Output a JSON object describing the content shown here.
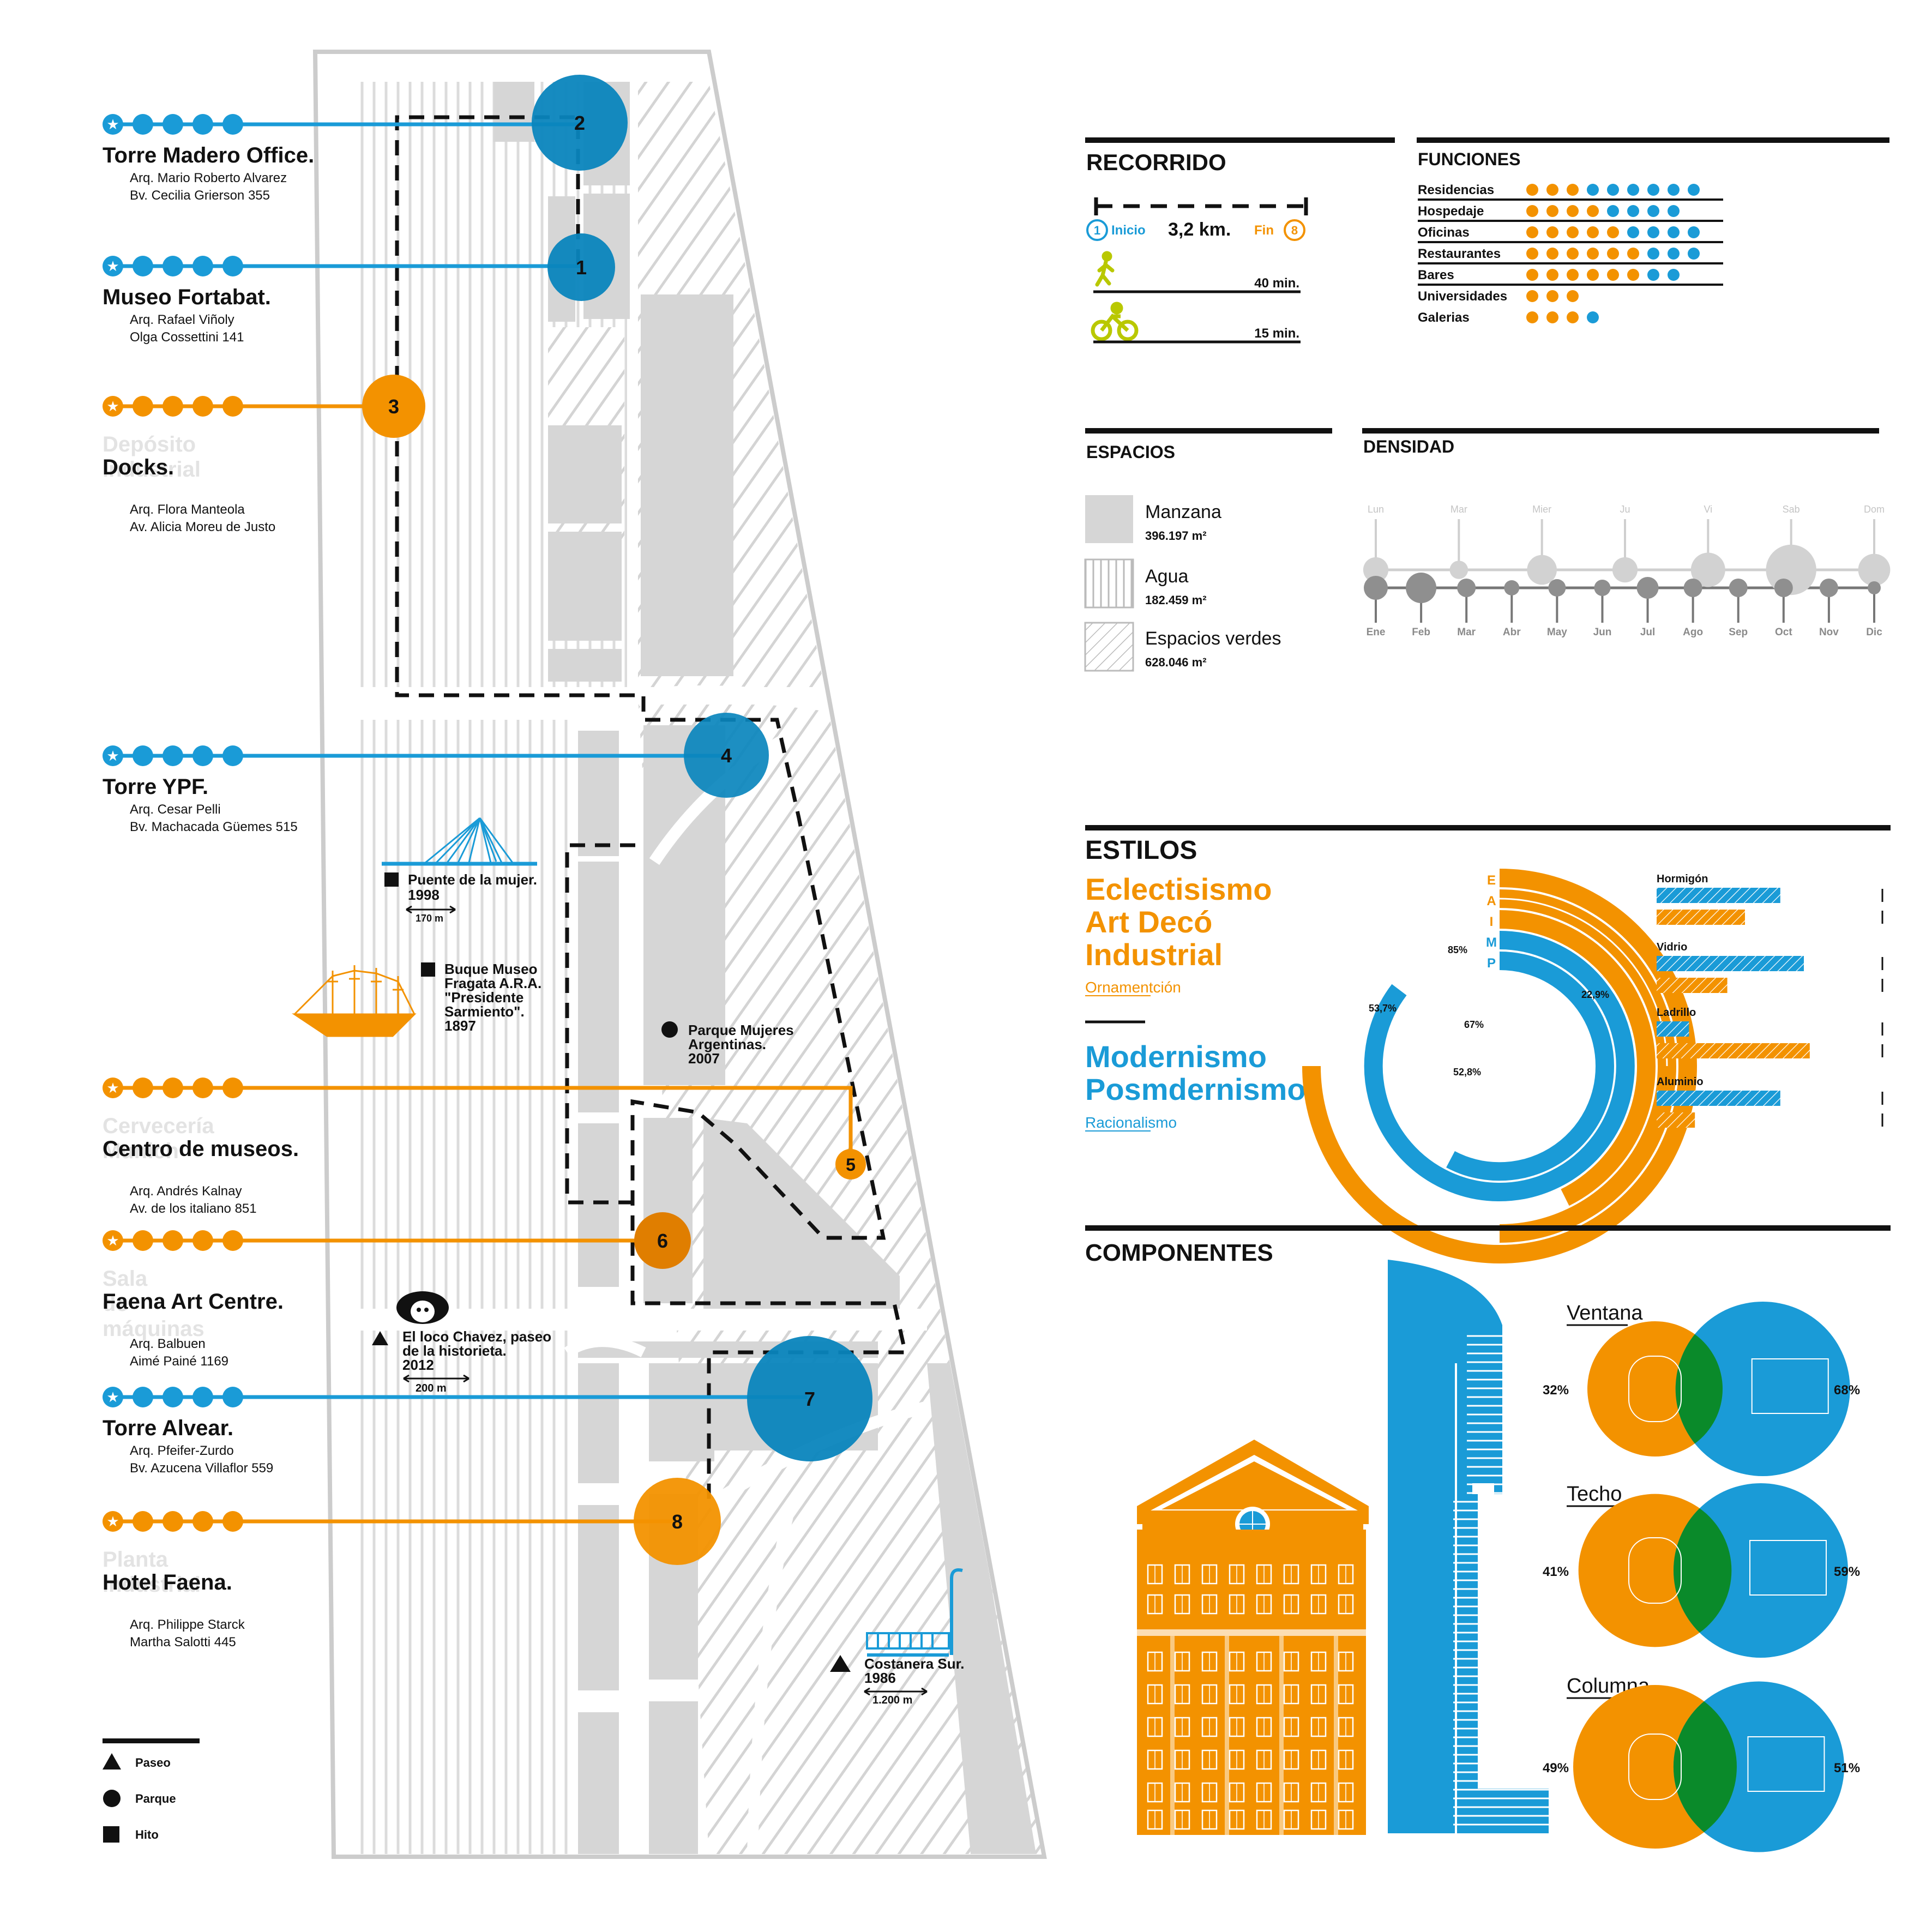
{
  "colors": {
    "blue": "#1a9bd7",
    "orange": "#f39200",
    "gray": "#d9d9d9",
    "dark_gray": "#6f6f6f",
    "green": "#0a8a2a",
    "lime": "#b9c800",
    "black": "#111111"
  },
  "landmarks": [
    {
      "number": "2",
      "name": "Torre Madero Office.",
      "ghost": "",
      "architect": "Arq. Mario Roberto Alvarez",
      "address": "Bv. Cecilia Grierson 355",
      "color": "blue"
    },
    {
      "number": "1",
      "name": "Museo Fortabat.",
      "ghost": "",
      "architect": "Arq. Rafael  Viñoly",
      "address": "Olga Cossettini 141",
      "color": "blue"
    },
    {
      "number": "3",
      "name": "Docks.",
      "ghost": "Depósito industrial",
      "architect": "Arq. Flora Manteola",
      "address": "Av. Alicia Moreu de Justo",
      "color": "orange"
    },
    {
      "number": "4",
      "name": "Torre YPF.",
      "ghost": "",
      "architect": "Arq. Cesar Pelli",
      "address": "Bv. Machacada Güemes 515",
      "color": "blue"
    },
    {
      "number": "5",
      "name": "Centro de museos.",
      "ghost": "Cervecería Munich",
      "architect": "Arq. Andrés Kalnay",
      "address": "Av. de los italiano 851",
      "color": "orange"
    },
    {
      "number": "6",
      "name": "Faena Art Centre.",
      "ghost": "Sala de máquinas",
      "architect": "Arq. Balbuen",
      "address": "Aimé Painé 1169",
      "color": "orange"
    },
    {
      "number": "7",
      "name": "Torre Alvear.",
      "ghost": "",
      "architect": "Arq. Pfeifer-Zurdo",
      "address": "Bv. Azucena Villaflor 559",
      "color": "blue"
    },
    {
      "number": "8",
      "name": "Hotel Faena.",
      "ghost": "Planta industrial",
      "architect": "Arq. Philippe Starck",
      "address": "Martha Salotti 445",
      "color": "orange"
    }
  ],
  "map_labels": {
    "puente": {
      "title": "Puente de la mujer.",
      "year": "1998",
      "distance": "170 m"
    },
    "buque": {
      "line1": "Buque Museo",
      "line2": "Fragata A.R.A.",
      "line3": "\"Presidente",
      "line4": "Sarmiento\".",
      "year": "1897"
    },
    "parque": {
      "line1": "Parque Mujeres",
      "line2": "Argentinas.",
      "year": "2007"
    },
    "loco": {
      "line1": "El loco Chavez, paseo",
      "line2": "de la historieta.",
      "year": "2012",
      "distance": "200 m"
    },
    "costanera": {
      "title": "Costanera Sur.",
      "year": "1986",
      "distance": "1.200 m"
    }
  },
  "legend": {
    "paseo": "Paseo",
    "parque": "Parque",
    "hito": "Hito"
  },
  "recorrido": {
    "title": "RECORRIDO",
    "start_num": "1",
    "start": "Inicio",
    "distance": "3,2 km.",
    "end": "Fin",
    "end_num": "8",
    "walk": "40 min.",
    "bike": "15 min."
  },
  "funciones": {
    "title": "FUNCIONES",
    "rows": [
      {
        "label": "Residencias",
        "orange": 3,
        "blue": 6
      },
      {
        "label": "Hospedaje",
        "orange": 4,
        "blue": 4
      },
      {
        "label": "Oficinas",
        "orange": 5,
        "blue": 4
      },
      {
        "label": "Restaurantes",
        "orange": 6,
        "blue": 3
      },
      {
        "label": "Bares",
        "orange": 6,
        "blue": 2
      },
      {
        "label": "Universidades",
        "orange": 3,
        "blue": 0
      },
      {
        "label": "Galerias",
        "orange": 3,
        "blue": 1
      }
    ]
  },
  "espacios": {
    "title": "ESPACIOS",
    "items": [
      {
        "name": "Manzana",
        "value": "396.197 m²"
      },
      {
        "name": "Agua",
        "value": "182.459 m²"
      },
      {
        "name": "Espacios verdes",
        "value": "628.046 m²"
      }
    ]
  },
  "densidad": {
    "title": "DENSIDAD",
    "days": [
      "Lun",
      "Mar",
      "Mier",
      "Ju",
      "Vi",
      "Sab",
      "Dom"
    ],
    "day_sizes": [
      22,
      16,
      26,
      22,
      30,
      44,
      28
    ],
    "months": [
      "Ene",
      "Feb",
      "Mar",
      "Abr",
      "May",
      "Jun",
      "Jul",
      "Ago",
      "Sep",
      "Oct",
      "Nov",
      "Dic"
    ],
    "month_sizes": [
      22,
      28,
      17,
      14,
      16,
      15,
      20,
      17,
      17,
      17,
      17,
      12
    ]
  },
  "estilos": {
    "title": "ESTILOS",
    "orange_styles": [
      "Eclectisismo",
      "Art Decó",
      "Industrial"
    ],
    "orange_sub": "Ornamentción",
    "blue_styles": [
      "Modernismo",
      "Posmdernismo"
    ],
    "blue_sub": "Racionalismo",
    "ring_letters": [
      "E",
      "A",
      "I",
      "M",
      "P"
    ],
    "percent_labels": [
      "85%",
      "53,7%",
      "67%",
      "22,9%",
      "52,8%"
    ],
    "materials": [
      {
        "name": "Hormigón",
        "blue": 0.42,
        "orange": 0.3
      },
      {
        "name": "Vidrio",
        "blue": 0.5,
        "orange": 0.24
      },
      {
        "name": "Ladrillo",
        "blue": 0.11,
        "orange": 0.52
      },
      {
        "name": "Aluminio",
        "blue": 0.42,
        "orange": 0.13
      }
    ]
  },
  "componentes": {
    "title": "COMPONENTES",
    "items": [
      {
        "name": "Ventana",
        "orange": "32%",
        "blue": "68%"
      },
      {
        "name": "Techo",
        "orange": "41%",
        "blue": "59%"
      },
      {
        "name": "Columna",
        "orange": "49%",
        "blue": "51%"
      }
    ]
  }
}
